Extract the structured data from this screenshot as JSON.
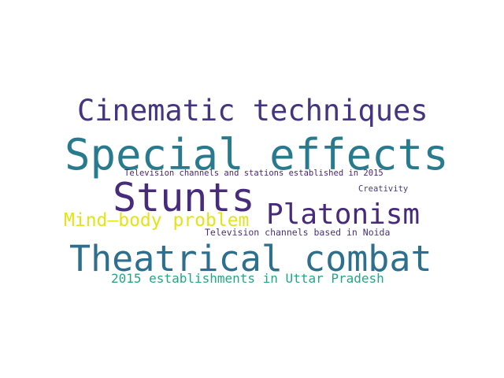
{
  "words": [
    {
      "text": "Cinematic techniques",
      "color": "#45347f"
    },
    {
      "text": "Special effects",
      "color": "#287b8e"
    },
    {
      "text": "Stunts",
      "color": "#462c7a"
    },
    {
      "text": "Platonism",
      "color": "#472a7a"
    },
    {
      "text": "Theatrical combat",
      "color": "#2d6f8e"
    },
    {
      "text": "Mind–body problem",
      "color": "#e2e418"
    },
    {
      "text": "2015 establishments in Uttar Pradesh",
      "color": "#22a785"
    },
    {
      "text": "Television channels and stations established in 2015",
      "color": "#482575"
    },
    {
      "text": "Creativity",
      "color": "#433d84"
    },
    {
      "text": "Television channels based in Noida",
      "color": "#46327e"
    }
  ]
}
